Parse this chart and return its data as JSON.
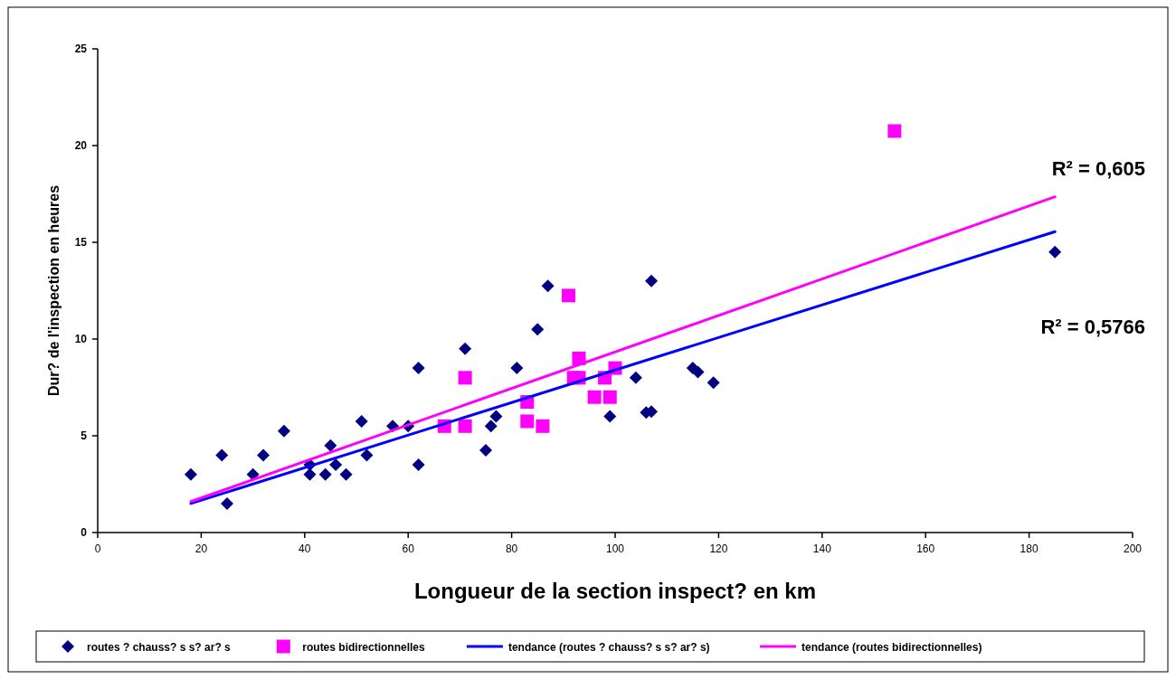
{
  "chart_data": {
    "type": "scatter",
    "xlabel": "Longueur de la section inspect?  en km",
    "ylabel": "Dur?  de l'inspection en heures",
    "xlim": [
      0,
      200
    ],
    "xticks": [
      0,
      20,
      40,
      60,
      80,
      100,
      120,
      140,
      160,
      180,
      200
    ],
    "ylim": [
      0,
      25
    ],
    "yticks": [
      0,
      5,
      10,
      15,
      20,
      25
    ],
    "grid": false,
    "legend": "bottom",
    "series": [
      {
        "name": "routes ? chauss? s s? ar? s",
        "marker": "diamond",
        "color": "#000080",
        "x": [
          18,
          24,
          25,
          30,
          32,
          36,
          41,
          41,
          44,
          45,
          46,
          48,
          51,
          52,
          57,
          60,
          62,
          62,
          71,
          75,
          76,
          77,
          81,
          85,
          87,
          99,
          104,
          106,
          107,
          107,
          115,
          116,
          119,
          185
        ],
        "values": [
          3,
          4,
          1.5,
          3,
          4,
          5.25,
          3.5,
          3,
          3,
          4.5,
          3.5,
          3,
          5.75,
          4,
          5.5,
          5.5,
          8.5,
          3.5,
          9.5,
          4.25,
          5.5,
          6,
          8.5,
          10.5,
          12.75,
          6,
          8,
          6.2,
          6.25,
          13,
          8.5,
          8.3,
          7.75,
          14.5
        ]
      },
      {
        "name": "routes bidirectionnelles",
        "marker": "square",
        "color": "#ff00ff",
        "x": [
          67,
          71,
          71,
          83,
          83,
          86,
          91,
          92,
          93,
          93,
          96,
          98,
          99,
          100,
          154
        ],
        "values": [
          5.5,
          8,
          5.5,
          6.75,
          5.75,
          5.5,
          12.25,
          8,
          9,
          8,
          7,
          8,
          7,
          8.5,
          20.75
        ]
      },
      {
        "name": "tendance (routes ? chauss? s s? ar? s)",
        "type": "line",
        "marker": "none",
        "color": "#0000ff",
        "x": [
          18,
          185
        ],
        "values": [
          1.5,
          15.55
        ]
      },
      {
        "name": "tendance (routes bidirectionnelles)",
        "type": "line",
        "marker": "none",
        "color": "#ff00ff",
        "x": [
          18,
          185
        ],
        "values": [
          1.6,
          17.35
        ]
      }
    ],
    "annotations": [
      "R² = 0,605",
      "R² = 0,5766"
    ]
  }
}
